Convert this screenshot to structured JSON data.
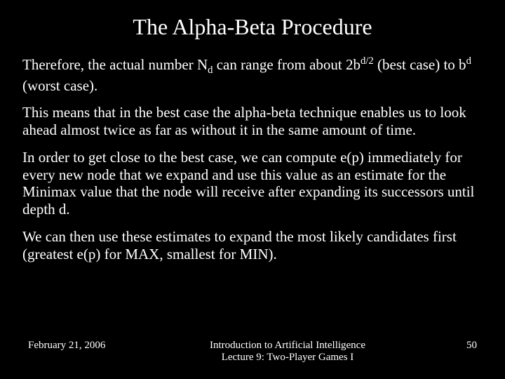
{
  "slide": {
    "title": "The Alpha-Beta Procedure",
    "paragraphs": {
      "p1_a": "Therefore, the actual number N",
      "p1_sub1": "d",
      "p1_b": " can range from about 2b",
      "p1_sup1": "d/2",
      "p1_c": " (best case) to b",
      "p1_sup2": "d",
      "p1_d": " (worst case).",
      "p2": "This means that in the best case the alpha-beta technique enables us to look ahead almost twice as far as without it in the same amount of time.",
      "p3": "In order to get close to the best case, we can compute e(p) immediately for every new node that we expand and use this value as an estimate for the Minimax value that the node will receive after expanding its successors until depth d.",
      "p4": "We can then use these estimates to expand the most likely candidates first (greatest e(p) for MAX, smallest for MIN)."
    },
    "footer": {
      "date": "February 21, 2006",
      "course_line1": "Introduction to Artificial Intelligence",
      "course_line2": "Lecture 9: Two-Player Games I",
      "page": "50"
    },
    "colors": {
      "background": "#000000",
      "text": "#ffffff"
    }
  }
}
